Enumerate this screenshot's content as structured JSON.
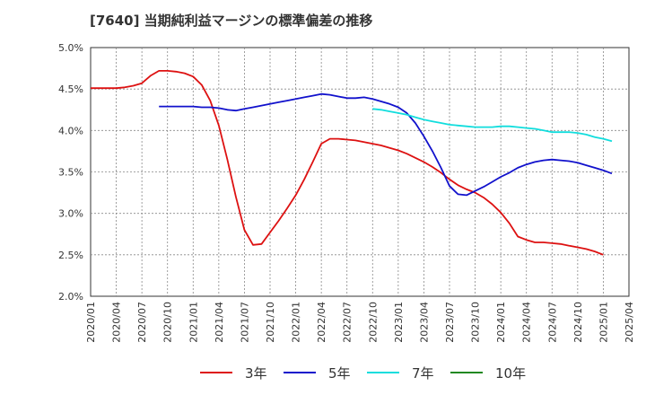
{
  "chart_data": {
    "type": "line",
    "title": "[7640]  当期純利益マージンの標準偏差の推移",
    "x": [
      "2020/01",
      "2020/04",
      "2020/07",
      "2020/10",
      "2021/01",
      "2021/04",
      "2021/07",
      "2021/10",
      "2022/01",
      "2022/04",
      "2022/07",
      "2022/10",
      "2023/01",
      "2023/04",
      "2023/07",
      "2023/10",
      "2024/01",
      "2024/04",
      "2024/07",
      "2024/10",
      "2025/01",
      "2025/04"
    ],
    "xlim": [
      "2020/01",
      "2025/04"
    ],
    "ylim": [
      2.0,
      5.0
    ],
    "yticks": [
      "2.0%",
      "2.5%",
      "3.0%",
      "3.5%",
      "4.0%",
      "4.5%",
      "5.0%"
    ],
    "ytick_values": [
      2.0,
      2.5,
      3.0,
      3.5,
      4.0,
      4.5,
      5.0
    ],
    "grid": true,
    "legend_position": "bottom",
    "series": [
      {
        "name": "3年",
        "color": "#dd1111",
        "points": [
          [
            "2020/01",
            4.51
          ],
          [
            "2020/02",
            4.51
          ],
          [
            "2020/03",
            4.51
          ],
          [
            "2020/04",
            4.51
          ],
          [
            "2020/05",
            4.52
          ],
          [
            "2020/06",
            4.54
          ],
          [
            "2020/07",
            4.57
          ],
          [
            "2020/08",
            4.66
          ],
          [
            "2020/09",
            4.72
          ],
          [
            "2020/10",
            4.72
          ],
          [
            "2020/11",
            4.71
          ],
          [
            "2020/12",
            4.69
          ],
          [
            "2021/01",
            4.65
          ],
          [
            "2021/02",
            4.55
          ],
          [
            "2021/03",
            4.36
          ],
          [
            "2021/04",
            4.06
          ],
          [
            "2021/05",
            3.65
          ],
          [
            "2021/06",
            3.2
          ],
          [
            "2021/07",
            2.8
          ],
          [
            "2021/08",
            2.62
          ],
          [
            "2021/09",
            2.63
          ],
          [
            "2021/10",
            2.77
          ],
          [
            "2021/11",
            2.91
          ],
          [
            "2021/12",
            3.06
          ],
          [
            "2022/01",
            3.22
          ],
          [
            "2022/02",
            3.41
          ],
          [
            "2022/03",
            3.62
          ],
          [
            "2022/04",
            3.84
          ],
          [
            "2022/05",
            3.9
          ],
          [
            "2022/06",
            3.9
          ],
          [
            "2022/07",
            3.89
          ],
          [
            "2022/08",
            3.88
          ],
          [
            "2022/09",
            3.86
          ],
          [
            "2022/10",
            3.84
          ],
          [
            "2022/11",
            3.82
          ],
          [
            "2022/12",
            3.79
          ],
          [
            "2023/01",
            3.76
          ],
          [
            "2023/02",
            3.72
          ],
          [
            "2023/03",
            3.67
          ],
          [
            "2023/04",
            3.62
          ],
          [
            "2023/05",
            3.56
          ],
          [
            "2023/06",
            3.49
          ],
          [
            "2023/07",
            3.41
          ],
          [
            "2023/08",
            3.34
          ],
          [
            "2023/09",
            3.29
          ],
          [
            "2023/10",
            3.25
          ],
          [
            "2023/11",
            3.19
          ],
          [
            "2023/12",
            3.11
          ],
          [
            "2024/01",
            3.01
          ],
          [
            "2024/02",
            2.88
          ],
          [
            "2024/03",
            2.72
          ],
          [
            "2024/04",
            2.68
          ],
          [
            "2024/05",
            2.65
          ],
          [
            "2024/06",
            2.65
          ],
          [
            "2024/07",
            2.64
          ],
          [
            "2024/08",
            2.63
          ],
          [
            "2024/09",
            2.61
          ],
          [
            "2024/10",
            2.59
          ],
          [
            "2024/11",
            2.57
          ],
          [
            "2024/12",
            2.54
          ],
          [
            "2025/01",
            2.5
          ]
        ]
      },
      {
        "name": "5年",
        "color": "#1111cc",
        "points": [
          [
            "2020/09",
            4.29
          ],
          [
            "2020/10",
            4.29
          ],
          [
            "2020/11",
            4.29
          ],
          [
            "2020/12",
            4.29
          ],
          [
            "2021/01",
            4.29
          ],
          [
            "2021/02",
            4.28
          ],
          [
            "2021/03",
            4.28
          ],
          [
            "2021/04",
            4.27
          ],
          [
            "2021/05",
            4.25
          ],
          [
            "2021/06",
            4.24
          ],
          [
            "2021/07",
            4.26
          ],
          [
            "2021/08",
            4.28
          ],
          [
            "2021/09",
            4.3
          ],
          [
            "2021/10",
            4.32
          ],
          [
            "2021/11",
            4.34
          ],
          [
            "2021/12",
            4.36
          ],
          [
            "2022/01",
            4.38
          ],
          [
            "2022/02",
            4.4
          ],
          [
            "2022/03",
            4.42
          ],
          [
            "2022/04",
            4.44
          ],
          [
            "2022/05",
            4.43
          ],
          [
            "2022/06",
            4.41
          ],
          [
            "2022/07",
            4.39
          ],
          [
            "2022/08",
            4.39
          ],
          [
            "2022/09",
            4.4
          ],
          [
            "2022/10",
            4.38
          ],
          [
            "2022/11",
            4.35
          ],
          [
            "2022/12",
            4.32
          ],
          [
            "2023/01",
            4.28
          ],
          [
            "2023/02",
            4.21
          ],
          [
            "2023/03",
            4.09
          ],
          [
            "2023/04",
            3.93
          ],
          [
            "2023/05",
            3.75
          ],
          [
            "2023/06",
            3.55
          ],
          [
            "2023/07",
            3.33
          ],
          [
            "2023/08",
            3.23
          ],
          [
            "2023/09",
            3.22
          ],
          [
            "2023/10",
            3.27
          ],
          [
            "2023/11",
            3.32
          ],
          [
            "2023/12",
            3.38
          ],
          [
            "2024/01",
            3.44
          ],
          [
            "2024/02",
            3.49
          ],
          [
            "2024/03",
            3.55
          ],
          [
            "2024/04",
            3.59
          ],
          [
            "2024/05",
            3.62
          ],
          [
            "2024/06",
            3.64
          ],
          [
            "2024/07",
            3.65
          ],
          [
            "2024/08",
            3.64
          ],
          [
            "2024/09",
            3.63
          ],
          [
            "2024/10",
            3.61
          ],
          [
            "2024/11",
            3.58
          ],
          [
            "2024/12",
            3.55
          ],
          [
            "2025/01",
            3.52
          ],
          [
            "2025/02",
            3.48
          ]
        ]
      },
      {
        "name": "7年",
        "color": "#11dddd",
        "points": [
          [
            "2022/10",
            4.26
          ],
          [
            "2022/11",
            4.25
          ],
          [
            "2022/12",
            4.23
          ],
          [
            "2023/01",
            4.21
          ],
          [
            "2023/02",
            4.19
          ],
          [
            "2023/03",
            4.16
          ],
          [
            "2023/04",
            4.13
          ],
          [
            "2023/05",
            4.11
          ],
          [
            "2023/06",
            4.09
          ],
          [
            "2023/07",
            4.07
          ],
          [
            "2023/08",
            4.06
          ],
          [
            "2023/09",
            4.05
          ],
          [
            "2023/10",
            4.04
          ],
          [
            "2023/11",
            4.04
          ],
          [
            "2023/12",
            4.04
          ],
          [
            "2024/01",
            4.05
          ],
          [
            "2024/02",
            4.05
          ],
          [
            "2024/03",
            4.04
          ],
          [
            "2024/04",
            4.03
          ],
          [
            "2024/05",
            4.02
          ],
          [
            "2024/06",
            4.0
          ],
          [
            "2024/07",
            3.98
          ],
          [
            "2024/08",
            3.98
          ],
          [
            "2024/09",
            3.98
          ],
          [
            "2024/10",
            3.97
          ],
          [
            "2024/11",
            3.95
          ],
          [
            "2024/12",
            3.92
          ],
          [
            "2025/01",
            3.9
          ],
          [
            "2025/02",
            3.87
          ]
        ]
      },
      {
        "name": "10年",
        "color": "#228822",
        "points": []
      }
    ]
  }
}
